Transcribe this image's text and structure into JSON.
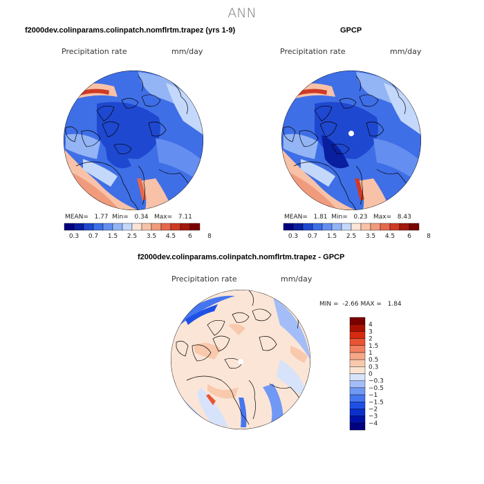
{
  "main_title": "ANN",
  "panels": [
    {
      "title": "f2000dev.colinparams.colinpatch.nomflrtm.trapez (yrs 1-9)",
      "variable": "Precipitation rate",
      "units": "mm/day",
      "stats": {
        "mean_label": "MEAN=",
        "mean": "1.77",
        "min_label": "Min=",
        "min": "0.34",
        "max_label": "Max=",
        "max": "7.11"
      }
    },
    {
      "title": "GPCP",
      "variable": "Precipitation rate",
      "units": "mm/day",
      "stats": {
        "mean_label": "MEAN=",
        "mean": "1.81",
        "min_label": "Min=",
        "min": "0.23",
        "max_label": "Max=",
        "max": "8.43"
      }
    },
    {
      "title": "f2000dev.colinparams.colinpatch.nomflrtm.trapez - GPCP",
      "variable": "Precipitation rate",
      "units": "mm/day",
      "stats": {
        "min_label": "MIN =",
        "min": "-2.66",
        "max_label": "MAX =",
        "max": "1.84"
      }
    }
  ],
  "abs_colorbar": {
    "colors": [
      "#00007f",
      "#0a1ea0",
      "#1f48d0",
      "#3c6ee6",
      "#648ff0",
      "#93b4f5",
      "#c4d8fb",
      "#fbe5d6",
      "#f7c2a8",
      "#f19b7d",
      "#e6684d",
      "#cf3a25",
      "#a31a0d",
      "#7a0000"
    ],
    "labels": [
      "0.3",
      "0.7",
      "1.5",
      "2.5",
      "3.5",
      "4.5",
      "6",
      "8"
    ]
  },
  "diff_colorbar": {
    "colors": [
      "#00007f",
      "#0012a6",
      "#0a30cc",
      "#1f50e6",
      "#4676ef",
      "#7098f5",
      "#a3bdf8",
      "#d6e3fb",
      "#fbe3d1",
      "#f9c9ad",
      "#f5a787",
      "#f08060",
      "#e85534",
      "#d62b10",
      "#a81000",
      "#7a0000"
    ],
    "labels": [
      "4",
      "3",
      "2",
      "1.5",
      "1",
      "0.5",
      "0.3",
      "0",
      "−0.3",
      "−0.5",
      "−1",
      "−1.5",
      "−2",
      "−3",
      "−4"
    ]
  }
}
